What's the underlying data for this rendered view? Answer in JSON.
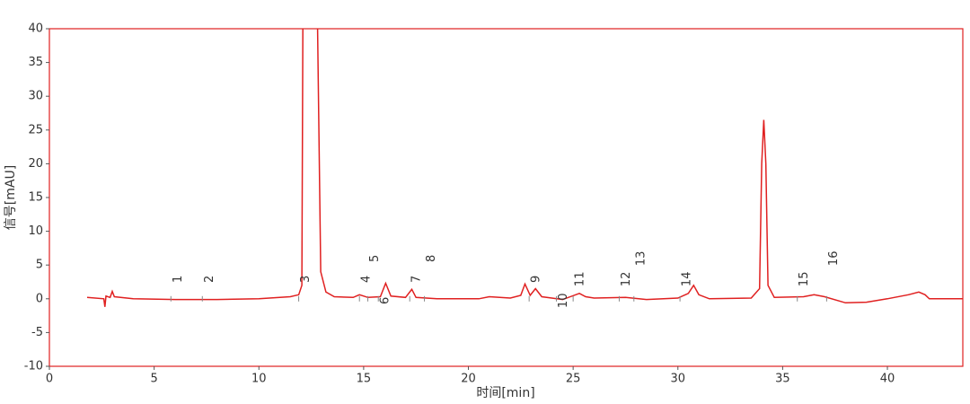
{
  "chart_data": {
    "type": "line",
    "x_label": "时间[min]",
    "y_label": "信号[mAU]",
    "color": "#e02020",
    "x": [
      1.8,
      2.6,
      2.65,
      2.7,
      2.9,
      3.0,
      3.1,
      4,
      6,
      8,
      10,
      11.5,
      11.9,
      12.05,
      12.1,
      12.45,
      12.8,
      12.95,
      13.2,
      13.6,
      14.5,
      14.8,
      15.2,
      15.8,
      16.05,
      16.3,
      17.0,
      17.3,
      17.5,
      18.5,
      20.5,
      21,
      22,
      22.5,
      22.7,
      22.95,
      23.2,
      23.5,
      24.5,
      25.3,
      25.6,
      26,
      27.5,
      28.5,
      30,
      30.5,
      30.75,
      31,
      31.5,
      33.5,
      33.9,
      34.0,
      34.1,
      34.2,
      34.3,
      34.6,
      36,
      36.5,
      37,
      38,
      39,
      40,
      41,
      41.5,
      41.8,
      42,
      43.6
    ],
    "values": [
      0.2,
      0,
      -1.2,
      0.4,
      0.2,
      1.1,
      0.3,
      0,
      -0.1,
      -0.1,
      0,
      0.3,
      0.6,
      2,
      40,
      null,
      40,
      4,
      1,
      0.3,
      0.2,
      0.6,
      0.2,
      0.3,
      2.3,
      0.4,
      0.2,
      1.4,
      0.2,
      0,
      0,
      0.3,
      0.1,
      0.5,
      2.2,
      0.5,
      1.5,
      0.3,
      -0.1,
      0.8,
      0.3,
      0.1,
      0.2,
      -0.1,
      0.1,
      0.8,
      2,
      0.6,
      0,
      0.1,
      1.5,
      20,
      26.5,
      20,
      2,
      0.2,
      0.3,
      0.6,
      0.3,
      -0.6,
      -0.5,
      0,
      0.6,
      1,
      0.6,
      0,
      0
    ],
    "xlim": [
      0,
      43.6
    ],
    "ylim": [
      -10,
      40
    ],
    "xticks": [
      0,
      5,
      10,
      15,
      20,
      25,
      30,
      35,
      40
    ],
    "yticks": [
      -10,
      -5,
      0,
      5,
      10,
      15,
      20,
      25,
      30,
      35,
      40
    ],
    "peaks": [
      {
        "label": "1",
        "x": 5.8
      },
      {
        "label": "2",
        "x": 7.3
      },
      {
        "label": "3",
        "x": 11.9
      },
      {
        "label": "4",
        "x": 14.8
      },
      {
        "label": "5",
        "x": 15.2
      },
      {
        "label": "6",
        "x": 15.7
      },
      {
        "label": "7",
        "x": 17.2
      },
      {
        "label": "8",
        "x": 17.9
      },
      {
        "label": "9",
        "x": 22.9
      },
      {
        "label": "10",
        "x": 24.2
      },
      {
        "label": "11",
        "x": 25.0
      },
      {
        "label": "12",
        "x": 27.2
      },
      {
        "label": "13",
        "x": 27.9
      },
      {
        "label": "14",
        "x": 30.1
      },
      {
        "label": "15",
        "x": 35.7
      },
      {
        "label": "16",
        "x": 37.1
      }
    ]
  }
}
